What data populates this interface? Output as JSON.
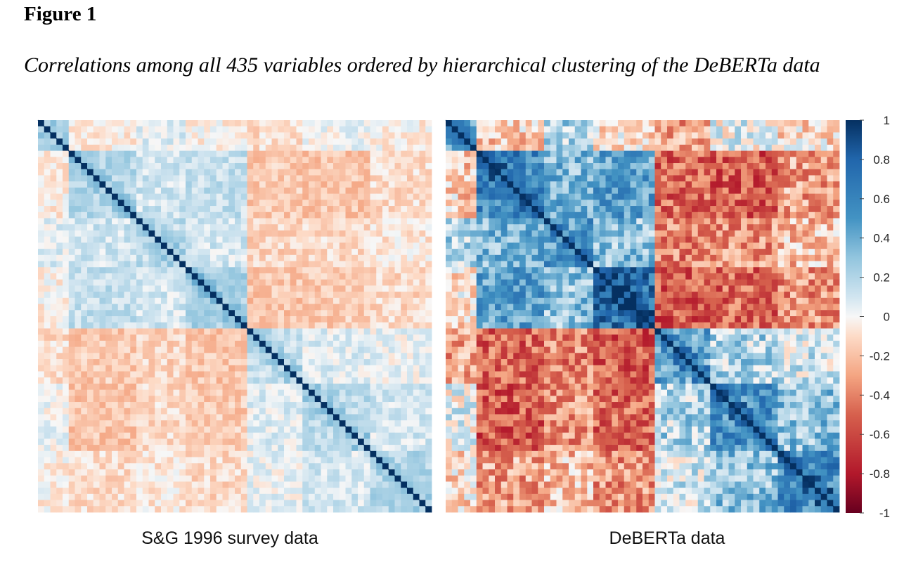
{
  "figure": {
    "label": "Figure 1",
    "caption": "Correlations among all 435 variables ordered by hierarchical clustering of the DeBERTa data"
  },
  "chart_data": [
    {
      "type": "heatmap",
      "title": "S&G 1996 survey data",
      "n_variables": 435,
      "value_range": [
        -1,
        1
      ],
      "diagonal_value": 1,
      "off_diagonal_range_approx": [
        -0.3,
        0.3
      ]
    },
    {
      "type": "heatmap",
      "title": "DeBERTa data",
      "n_variables": 435,
      "value_range": [
        -1,
        1
      ],
      "diagonal_value": 1,
      "off_diagonal_range_approx": [
        -0.6,
        0.9
      ]
    }
  ],
  "colorbar": {
    "ticks": [
      "1",
      "0.8",
      "0.6",
      "0.4",
      "0.2",
      "0",
      "-0.2",
      "-0.4",
      "-0.6",
      "-0.8",
      "-1"
    ],
    "tick_values": [
      1,
      0.8,
      0.6,
      0.4,
      0.2,
      0,
      -0.2,
      -0.4,
      -0.6,
      -0.8,
      -1
    ],
    "colors": {
      "neg1": "#67001f",
      "neg08": "#b2182b",
      "neg05": "#d6604d",
      "neg03": "#f4a582",
      "neg01": "#fddbc7",
      "zero": "#f7f7f7",
      "pos01": "#d1e5f0",
      "pos03": "#92c5de",
      "pos05": "#4393c3",
      "pos08": "#2166ac",
      "pos1": "#053061"
    }
  }
}
